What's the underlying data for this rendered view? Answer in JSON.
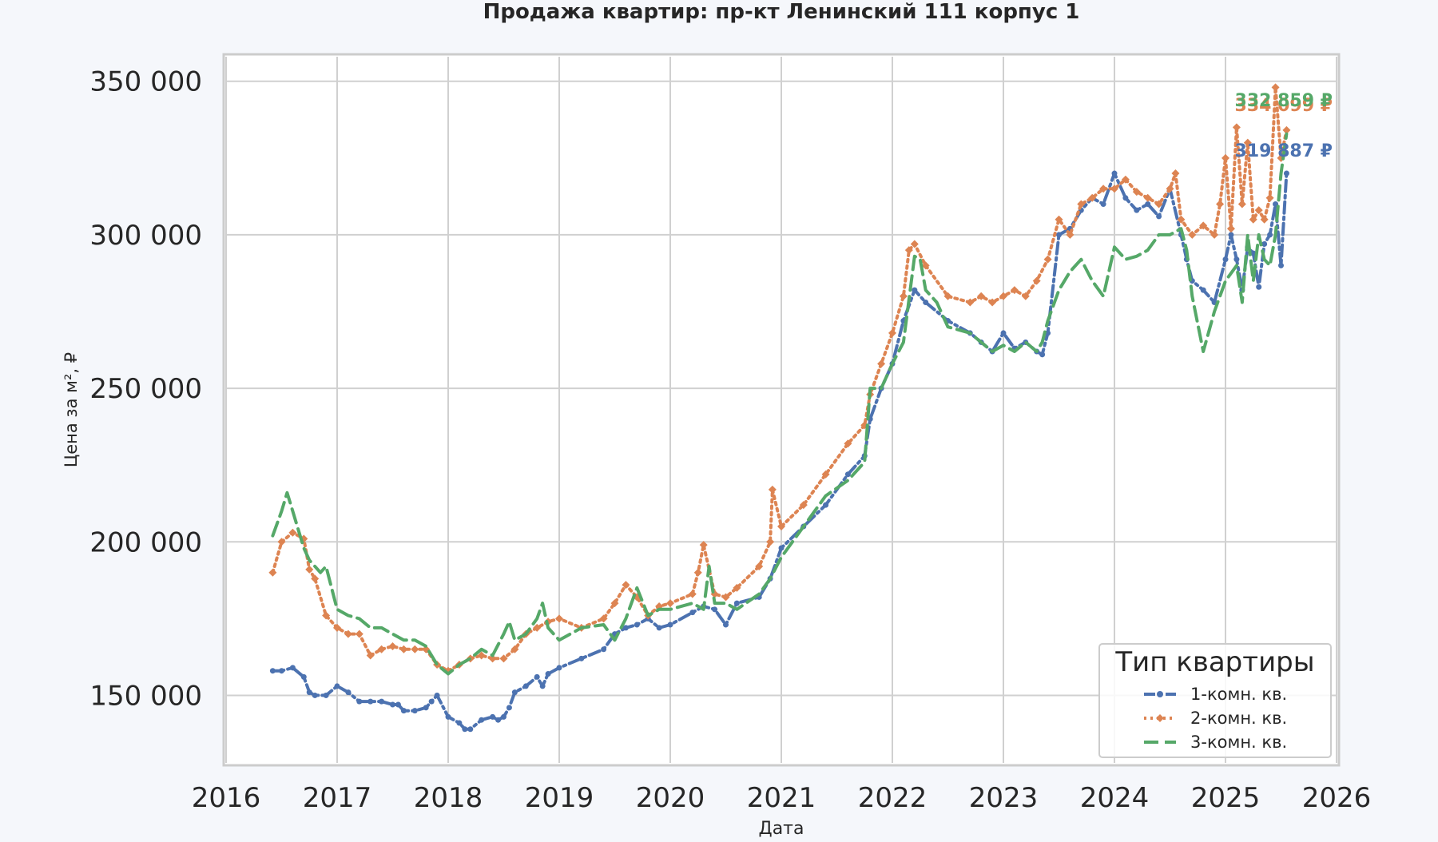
{
  "chart_data": {
    "type": "line",
    "title": "Продажа квартир: пр-кт Ленинский 111 корпус 1",
    "xlabel": "Дата",
    "ylabel": "Цена за м², ₽",
    "xlim": [
      2016.0,
      2026.0
    ],
    "ylim": [
      128000,
      358000
    ],
    "x_ticks": [
      2016,
      2017,
      2018,
      2019,
      2020,
      2021,
      2022,
      2023,
      2024,
      2025,
      2026
    ],
    "x_tick_labels": [
      "2016",
      "2017",
      "2018",
      "2019",
      "2020",
      "2021",
      "2022",
      "2023",
      "2024",
      "2025",
      "2026"
    ],
    "y_ticks": [
      150000,
      200000,
      250000,
      300000,
      350000
    ],
    "y_tick_labels": [
      "150 000",
      "200 000",
      "250 000",
      "300 000",
      "350 000"
    ],
    "grid": true,
    "legend": {
      "title": "Тип квартиры",
      "placement": "bottom-right"
    },
    "series": [
      {
        "name": "1-комн. кв.",
        "color": "#4c72b0",
        "style": "dash-dot",
        "marker": "circle",
        "end_label": "319 887 ₽",
        "x": [
          2016.42,
          2016.5,
          2016.6,
          2016.7,
          2016.75,
          2016.8,
          2016.9,
          2017.0,
          2017.1,
          2017.2,
          2017.3,
          2017.4,
          2017.5,
          2017.55,
          2017.6,
          2017.7,
          2017.8,
          2017.85,
          2017.9,
          2018.0,
          2018.1,
          2018.15,
          2018.2,
          2018.3,
          2018.4,
          2018.45,
          2018.5,
          2018.55,
          2018.6,
          2018.7,
          2018.8,
          2018.85,
          2018.9,
          2019.0,
          2019.2,
          2019.4,
          2019.5,
          2019.6,
          2019.7,
          2019.8,
          2019.9,
          2020.0,
          2020.2,
          2020.3,
          2020.4,
          2020.5,
          2020.6,
          2020.8,
          2020.9,
          2021.0,
          2021.2,
          2021.4,
          2021.6,
          2021.75,
          2021.8,
          2021.9,
          2022.0,
          2022.1,
          2022.2,
          2022.3,
          2022.5,
          2022.7,
          2022.8,
          2022.9,
          2023.0,
          2023.1,
          2023.2,
          2023.3,
          2023.35,
          2023.4,
          2023.5,
          2023.6,
          2023.7,
          2023.8,
          2023.9,
          2024.0,
          2024.1,
          2024.2,
          2024.3,
          2024.4,
          2024.5,
          2024.6,
          2024.65,
          2024.7,
          2024.8,
          2024.9,
          2025.0,
          2025.05,
          2025.1,
          2025.15,
          2025.2,
          2025.25,
          2025.3,
          2025.35,
          2025.4,
          2025.45,
          2025.5,
          2025.55
        ],
        "y": [
          158000,
          158000,
          159000,
          156000,
          151000,
          150000,
          150000,
          153000,
          151000,
          148000,
          148000,
          148000,
          147000,
          147000,
          145000,
          145000,
          146000,
          148000,
          150000,
          143000,
          141000,
          139000,
          139000,
          142000,
          143000,
          142000,
          143000,
          146000,
          151000,
          153000,
          156000,
          153000,
          157000,
          159000,
          162000,
          165000,
          170000,
          172000,
          173000,
          175000,
          172000,
          173000,
          177000,
          179000,
          178000,
          173000,
          180000,
          182000,
          188000,
          198000,
          205000,
          212000,
          222000,
          228000,
          240000,
          250000,
          258000,
          272000,
          282000,
          278000,
          272000,
          268000,
          265000,
          262000,
          268000,
          263000,
          265000,
          262000,
          261000,
          268000,
          300000,
          302000,
          308000,
          312000,
          310000,
          320000,
          312000,
          308000,
          310000,
          306000,
          315000,
          300000,
          292000,
          285000,
          282000,
          278000,
          292000,
          300000,
          292000,
          282000,
          296000,
          294000,
          283000,
          297000,
          300000,
          310000,
          290000,
          320000
        ]
      },
      {
        "name": "2-комн. кв.",
        "color": "#dd8452",
        "style": "dotted",
        "marker": "diamond",
        "end_label": "334 099 ₽",
        "x": [
          2016.42,
          2016.5,
          2016.6,
          2016.7,
          2016.75,
          2016.8,
          2016.9,
          2017.0,
          2017.1,
          2017.2,
          2017.3,
          2017.4,
          2017.5,
          2017.6,
          2017.7,
          2017.8,
          2017.9,
          2018.0,
          2018.1,
          2018.2,
          2018.3,
          2018.4,
          2018.5,
          2018.6,
          2018.7,
          2018.8,
          2018.9,
          2019.0,
          2019.2,
          2019.4,
          2019.5,
          2019.6,
          2019.7,
          2019.8,
          2019.9,
          2020.0,
          2020.2,
          2020.25,
          2020.3,
          2020.4,
          2020.5,
          2020.6,
          2020.8,
          2020.9,
          2020.92,
          2021.0,
          2021.2,
          2021.4,
          2021.6,
          2021.75,
          2021.8,
          2021.9,
          2022.0,
          2022.1,
          2022.15,
          2022.2,
          2022.3,
          2022.5,
          2022.7,
          2022.8,
          2022.9,
          2023.0,
          2023.1,
          2023.2,
          2023.3,
          2023.4,
          2023.5,
          2023.6,
          2023.7,
          2023.8,
          2023.9,
          2024.0,
          2024.1,
          2024.2,
          2024.3,
          2024.4,
          2024.5,
          2024.55,
          2024.6,
          2024.7,
          2024.8,
          2024.9,
          2024.95,
          2025.0,
          2025.05,
          2025.1,
          2025.15,
          2025.2,
          2025.25,
          2025.3,
          2025.35,
          2025.4,
          2025.45,
          2025.5,
          2025.55
        ],
        "y": [
          190000,
          200000,
          203000,
          201000,
          191000,
          188000,
          176000,
          172000,
          170000,
          170000,
          163000,
          165000,
          166000,
          165000,
          165000,
          165000,
          160000,
          158000,
          160000,
          162000,
          163000,
          162000,
          162000,
          165000,
          170000,
          172000,
          174000,
          175000,
          172000,
          175000,
          180000,
          186000,
          182000,
          176000,
          179000,
          180000,
          183000,
          190000,
          199000,
          183000,
          182000,
          185000,
          192000,
          200000,
          217000,
          205000,
          212000,
          222000,
          232000,
          238000,
          248000,
          258000,
          268000,
          280000,
          295000,
          297000,
          290000,
          280000,
          278000,
          280000,
          278000,
          280000,
          282000,
          280000,
          285000,
          292000,
          305000,
          300000,
          310000,
          312000,
          315000,
          315000,
          318000,
          314000,
          312000,
          310000,
          315000,
          320000,
          305000,
          300000,
          303000,
          300000,
          310000,
          325000,
          302000,
          335000,
          310000,
          330000,
          305000,
          308000,
          305000,
          312000,
          348000,
          325000,
          334099
        ]
      },
      {
        "name": "3-комн. кв.",
        "color": "#55a868",
        "style": "dashed",
        "marker": "none",
        "end_label": "332 859 ₽",
        "x": [
          2016.42,
          2016.5,
          2016.55,
          2016.6,
          2016.7,
          2016.75,
          2016.85,
          2016.9,
          2017.0,
          2017.1,
          2017.2,
          2017.3,
          2017.4,
          2017.5,
          2017.6,
          2017.7,
          2017.8,
          2017.9,
          2018.0,
          2018.1,
          2018.2,
          2018.3,
          2018.4,
          2018.5,
          2018.55,
          2018.6,
          2018.7,
          2018.8,
          2018.85,
          2018.9,
          2019.0,
          2019.2,
          2019.4,
          2019.5,
          2019.6,
          2019.7,
          2019.8,
          2019.9,
          2020.0,
          2020.2,
          2020.3,
          2020.35,
          2020.4,
          2020.5,
          2020.6,
          2020.8,
          2020.9,
          2021.0,
          2021.2,
          2021.4,
          2021.6,
          2021.75,
          2021.8,
          2021.9,
          2022.0,
          2022.1,
          2022.2,
          2022.25,
          2022.3,
          2022.4,
          2022.5,
          2022.7,
          2022.8,
          2022.9,
          2023.0,
          2023.1,
          2023.2,
          2023.3,
          2023.35,
          2023.4,
          2023.5,
          2023.6,
          2023.7,
          2023.8,
          2023.9,
          2024.0,
          2024.1,
          2024.2,
          2024.3,
          2024.4,
          2024.5,
          2024.6,
          2024.65,
          2024.7,
          2024.8,
          2024.9,
          2025.0,
          2025.1,
          2025.15,
          2025.2,
          2025.25,
          2025.3,
          2025.35,
          2025.4,
          2025.45,
          2025.5,
          2025.55
        ],
        "y": [
          202000,
          210000,
          216000,
          210000,
          198000,
          194000,
          190000,
          192000,
          178000,
          176000,
          175000,
          172000,
          172000,
          170000,
          168000,
          168000,
          166000,
          160000,
          157000,
          160000,
          162000,
          165000,
          163000,
          170000,
          174000,
          168000,
          170000,
          175000,
          180000,
          172000,
          168000,
          172000,
          173000,
          168000,
          175000,
          185000,
          176000,
          178000,
          178000,
          180000,
          178000,
          192000,
          180000,
          180000,
          178000,
          183000,
          188000,
          195000,
          205000,
          215000,
          220000,
          226000,
          250000,
          250000,
          258000,
          265000,
          293000,
          292000,
          282000,
          278000,
          270000,
          268000,
          265000,
          262000,
          264000,
          262000,
          265000,
          262000,
          265000,
          272000,
          282000,
          288000,
          292000,
          285000,
          280000,
          296000,
          292000,
          293000,
          295000,
          300000,
          300000,
          302000,
          295000,
          280000,
          262000,
          275000,
          285000,
          290000,
          278000,
          300000,
          285000,
          300000,
          292000,
          290000,
          300000,
          320000,
          332859
        ]
      }
    ]
  }
}
